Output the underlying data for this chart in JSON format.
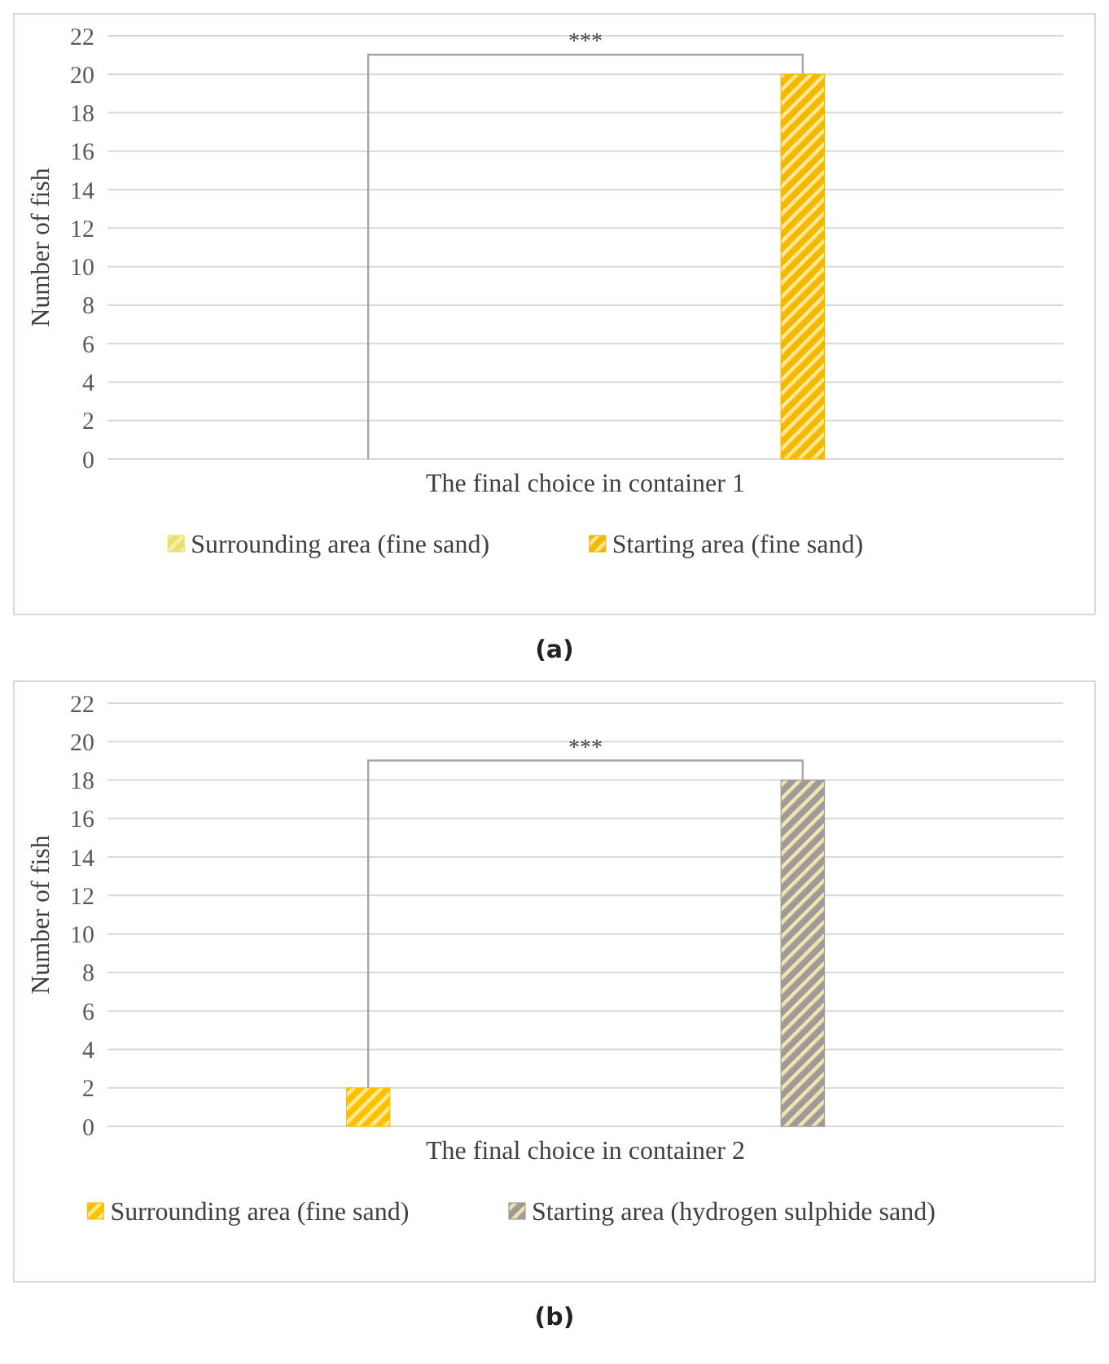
{
  "chart_data": [
    {
      "type": "bar",
      "categories": [
        "The final choice in container 1"
      ],
      "ylabel": "Number of fish",
      "ylim": [
        0,
        22
      ],
      "yticks": [
        0,
        2,
        4,
        6,
        8,
        10,
        12,
        14,
        16,
        18,
        20,
        22
      ],
      "grid": "y",
      "legend": "bottom",
      "series": [
        {
          "name": "Surrounding area (fine sand)",
          "color": "#e8e070",
          "values": [
            0
          ]
        },
        {
          "name": "Starting area (fine sand)",
          "color": "#f5b800",
          "values": [
            20
          ]
        }
      ],
      "annotations": [
        "***",
        "(a)"
      ]
    },
    {
      "type": "bar",
      "categories": [
        "The final choice in container 2"
      ],
      "ylabel": "Number of fish",
      "ylim": [
        0,
        22
      ],
      "yticks": [
        0,
        2,
        4,
        6,
        8,
        10,
        12,
        14,
        16,
        18,
        20,
        22
      ],
      "grid": "y",
      "legend": "bottom",
      "series": [
        {
          "name": "Surrounding area (fine sand)",
          "color": "#ffc000",
          "values": [
            2
          ]
        },
        {
          "name": "Starting area (hydrogen sulphide sand)",
          "color": "#a09a9a",
          "values": [
            18
          ]
        }
      ],
      "annotations": [
        "***",
        "(b)"
      ]
    }
  ]
}
